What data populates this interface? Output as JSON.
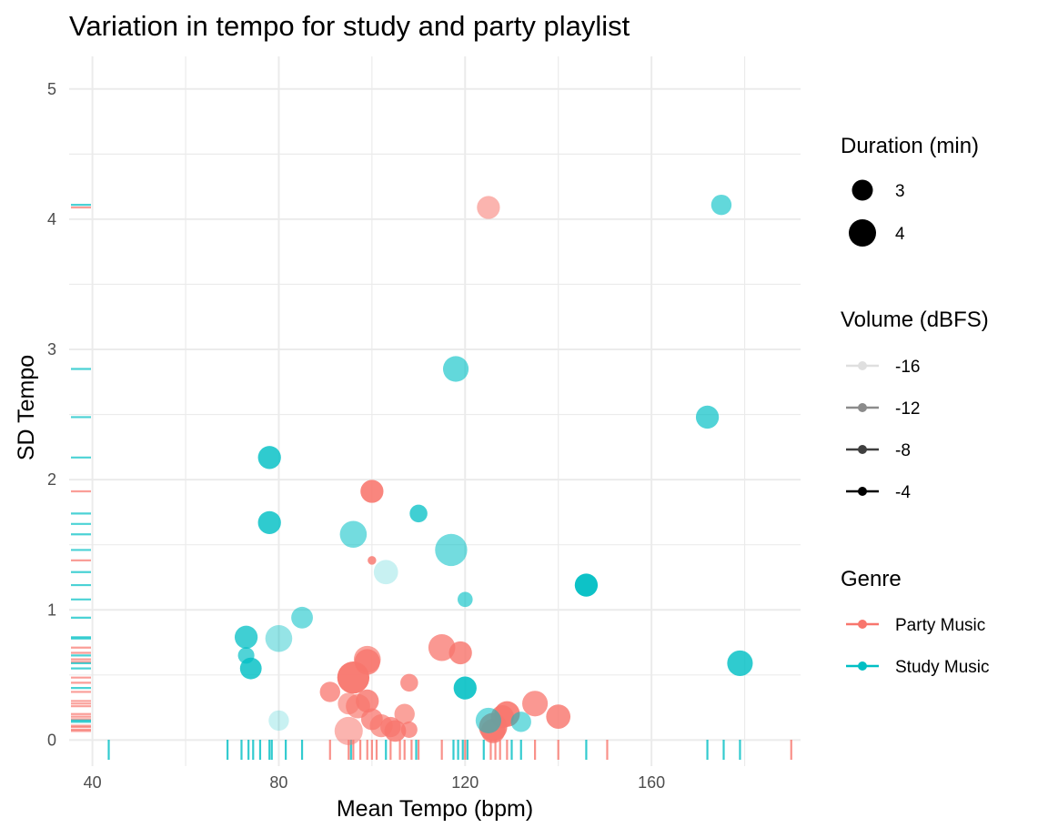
{
  "chart_data": {
    "type": "scatter",
    "title": "Variation in tempo for study and party playlist",
    "xlabel": "Mean Tempo (bpm)",
    "ylabel": "SD Tempo",
    "xlim": [
      35,
      192
    ],
    "ylim": [
      -0.2,
      5.25
    ],
    "xticks": [
      40,
      80,
      120,
      160
    ],
    "yticks": [
      0,
      1,
      2,
      3,
      4,
      5
    ],
    "grid": true,
    "legend_placement": "right",
    "legends": {
      "size": {
        "title": "Duration (min)",
        "items": [
          {
            "label": "3",
            "value": 3
          },
          {
            "label": "4",
            "value": 4
          }
        ]
      },
      "alpha": {
        "title": "Volume (dBFS)",
        "items": [
          {
            "label": "-16",
            "value": -16
          },
          {
            "label": "-12",
            "value": -12
          },
          {
            "label": "-8",
            "value": -8
          },
          {
            "label": "-4",
            "value": -4
          }
        ]
      },
      "color": {
        "title": "Genre",
        "items": [
          {
            "label": "Party Music",
            "color": "#F8766D"
          },
          {
            "label": "Study Music",
            "color": "#00BFC4"
          }
        ]
      }
    },
    "series": [
      {
        "name": "Party Music",
        "color": "#F8766D",
        "points": [
          {
            "x": 125,
            "y": 4.09,
            "duration": 3.4,
            "volume": -10
          },
          {
            "x": 100,
            "y": 1.91,
            "duration": 3.4,
            "volume": -5
          },
          {
            "x": 100,
            "y": 1.38,
            "duration": 2.3,
            "volume": -6
          },
          {
            "x": 115,
            "y": 0.71,
            "duration": 3.7,
            "volume": -7
          },
          {
            "x": 119,
            "y": 0.67,
            "duration": 3.4,
            "volume": -6
          },
          {
            "x": 99,
            "y": 0.62,
            "duration": 3.7,
            "volume": -8
          },
          {
            "x": 99,
            "y": 0.6,
            "duration": 3.6,
            "volume": -6
          },
          {
            "x": 96,
            "y": 0.48,
            "duration": 4.1,
            "volume": -4
          },
          {
            "x": 108,
            "y": 0.44,
            "duration": 3.0,
            "volume": -7
          },
          {
            "x": 91,
            "y": 0.37,
            "duration": 3.2,
            "volume": -7
          },
          {
            "x": 99,
            "y": 0.3,
            "duration": 3.4,
            "volume": -6
          },
          {
            "x": 95,
            "y": 0.28,
            "duration": 3.3,
            "volume": -9
          },
          {
            "x": 97,
            "y": 0.26,
            "duration": 3.5,
            "volume": -8
          },
          {
            "x": 135,
            "y": 0.28,
            "duration": 3.6,
            "volume": -7
          },
          {
            "x": 129,
            "y": 0.2,
            "duration": 3.6,
            "volume": -5
          },
          {
            "x": 128,
            "y": 0.18,
            "duration": 3.4,
            "volume": -6
          },
          {
            "x": 107,
            "y": 0.2,
            "duration": 3.2,
            "volume": -8
          },
          {
            "x": 140,
            "y": 0.18,
            "duration": 3.5,
            "volume": -6
          },
          {
            "x": 100,
            "y": 0.16,
            "duration": 3.3,
            "volume": -7
          },
          {
            "x": 102,
            "y": 0.11,
            "duration": 3.4,
            "volume": -8
          },
          {
            "x": 104,
            "y": 0.1,
            "duration": 3.2,
            "volume": -7
          },
          {
            "x": 105,
            "y": 0.07,
            "duration": 3.3,
            "volume": -6
          },
          {
            "x": 108,
            "y": 0.08,
            "duration": 2.9,
            "volume": -7
          },
          {
            "x": 95,
            "y": 0.07,
            "duration": 3.8,
            "volume": -10
          },
          {
            "x": 126,
            "y": 0.1,
            "duration": 3.8,
            "volume": -5
          },
          {
            "x": 126,
            "y": 0.07,
            "duration": 3.5,
            "volume": -6
          }
        ]
      },
      {
        "name": "Study Music",
        "color": "#00BFC4",
        "points": [
          {
            "x": 175,
            "y": 4.11,
            "duration": 3.2,
            "volume": -9
          },
          {
            "x": 118,
            "y": 2.85,
            "duration": 3.6,
            "volume": -9
          },
          {
            "x": 172,
            "y": 2.48,
            "duration": 3.4,
            "volume": -8
          },
          {
            "x": 78,
            "y": 2.17,
            "duration": 3.4,
            "volume": -6
          },
          {
            "x": 110,
            "y": 1.74,
            "duration": 3.0,
            "volume": -7
          },
          {
            "x": 78,
            "y": 1.67,
            "duration": 3.4,
            "volume": -6
          },
          {
            "x": 96,
            "y": 1.58,
            "duration": 3.7,
            "volume": -10
          },
          {
            "x": 117,
            "y": 1.46,
            "duration": 4.1,
            "volume": -10
          },
          {
            "x": 103,
            "y": 1.29,
            "duration": 3.5,
            "volume": -15
          },
          {
            "x": 146,
            "y": 1.19,
            "duration": 3.4,
            "volume": -4
          },
          {
            "x": 120,
            "y": 1.08,
            "duration": 2.8,
            "volume": -9
          },
          {
            "x": 85,
            "y": 0.94,
            "duration": 3.3,
            "volume": -10
          },
          {
            "x": 73,
            "y": 0.79,
            "duration": 3.4,
            "volume": -7
          },
          {
            "x": 80,
            "y": 0.78,
            "duration": 3.7,
            "volume": -12
          },
          {
            "x": 73,
            "y": 0.65,
            "duration": 2.9,
            "volume": -8
          },
          {
            "x": 74,
            "y": 0.55,
            "duration": 3.3,
            "volume": -6
          },
          {
            "x": 179,
            "y": 0.59,
            "duration": 3.6,
            "volume": -6
          },
          {
            "x": 120,
            "y": 0.4,
            "duration": 3.4,
            "volume": -5
          },
          {
            "x": 80,
            "y": 0.15,
            "duration": 3.2,
            "volume": -15
          },
          {
            "x": 125,
            "y": 0.15,
            "duration": 3.6,
            "volume": -10
          },
          {
            "x": 132,
            "y": 0.14,
            "duration": 3.2,
            "volume": -10
          }
        ]
      }
    ],
    "rug_x": [
      {
        "x": 43.5,
        "c": 1
      },
      {
        "x": 69,
        "c": 1
      },
      {
        "x": 72,
        "c": 1
      },
      {
        "x": 73.5,
        "c": 1
      },
      {
        "x": 74.5,
        "c": 1
      },
      {
        "x": 76,
        "c": 1
      },
      {
        "x": 78,
        "c": 1
      },
      {
        "x": 78.5,
        "c": 1
      },
      {
        "x": 81.5,
        "c": 1
      },
      {
        "x": 85,
        "c": 1
      },
      {
        "x": 91,
        "c": 0
      },
      {
        "x": 95,
        "c": 0
      },
      {
        "x": 95.5,
        "c": 1
      },
      {
        "x": 96,
        "c": 0
      },
      {
        "x": 97.5,
        "c": 0
      },
      {
        "x": 99,
        "c": 0
      },
      {
        "x": 100,
        "c": 0
      },
      {
        "x": 101,
        "c": 0
      },
      {
        "x": 103,
        "c": 1
      },
      {
        "x": 104,
        "c": 0
      },
      {
        "x": 106,
        "c": 0
      },
      {
        "x": 107,
        "c": 0
      },
      {
        "x": 108.5,
        "c": 0
      },
      {
        "x": 109.5,
        "c": 1
      },
      {
        "x": 110,
        "c": 0
      },
      {
        "x": 115,
        "c": 0
      },
      {
        "x": 117.5,
        "c": 1
      },
      {
        "x": 118.5,
        "c": 1
      },
      {
        "x": 119.5,
        "c": 1
      },
      {
        "x": 120,
        "c": 0
      },
      {
        "x": 120.5,
        "c": 1
      },
      {
        "x": 124,
        "c": 1
      },
      {
        "x": 125.5,
        "c": 0
      },
      {
        "x": 126.5,
        "c": 0
      },
      {
        "x": 127.5,
        "c": 0
      },
      {
        "x": 129,
        "c": 0
      },
      {
        "x": 130,
        "c": 1
      },
      {
        "x": 132,
        "c": 1
      },
      {
        "x": 135,
        "c": 0
      },
      {
        "x": 140,
        "c": 0
      },
      {
        "x": 146,
        "c": 1
      },
      {
        "x": 150.5,
        "c": 0
      },
      {
        "x": 172,
        "c": 1
      },
      {
        "x": 175.5,
        "c": 1
      },
      {
        "x": 179,
        "c": 1
      },
      {
        "x": 190,
        "c": 0
      }
    ],
    "rug_y": [
      {
        "y": 4.11,
        "c": 1
      },
      {
        "y": 4.09,
        "c": 0
      },
      {
        "y": 2.85,
        "c": 1
      },
      {
        "y": 2.48,
        "c": 1
      },
      {
        "y": 2.17,
        "c": 1
      },
      {
        "y": 1.91,
        "c": 0
      },
      {
        "y": 1.74,
        "c": 1
      },
      {
        "y": 1.66,
        "c": 1
      },
      {
        "y": 1.58,
        "c": 1
      },
      {
        "y": 1.46,
        "c": 1
      },
      {
        "y": 1.38,
        "c": 0
      },
      {
        "y": 1.29,
        "c": 1
      },
      {
        "y": 1.19,
        "c": 1
      },
      {
        "y": 1.08,
        "c": 1
      },
      {
        "y": 0.94,
        "c": 1
      },
      {
        "y": 0.79,
        "c": 1
      },
      {
        "y": 0.78,
        "c": 1
      },
      {
        "y": 0.71,
        "c": 0
      },
      {
        "y": 0.67,
        "c": 0
      },
      {
        "y": 0.65,
        "c": 1
      },
      {
        "y": 0.62,
        "c": 0
      },
      {
        "y": 0.6,
        "c": 0
      },
      {
        "y": 0.59,
        "c": 1
      },
      {
        "y": 0.55,
        "c": 1
      },
      {
        "y": 0.48,
        "c": 0
      },
      {
        "y": 0.44,
        "c": 0
      },
      {
        "y": 0.4,
        "c": 1
      },
      {
        "y": 0.37,
        "c": 0
      },
      {
        "y": 0.3,
        "c": 0
      },
      {
        "y": 0.28,
        "c": 0
      },
      {
        "y": 0.26,
        "c": 0
      },
      {
        "y": 0.2,
        "c": 0
      },
      {
        "y": 0.18,
        "c": 0
      },
      {
        "y": 0.16,
        "c": 0
      },
      {
        "y": 0.15,
        "c": 1
      },
      {
        "y": 0.14,
        "c": 1
      },
      {
        "y": 0.11,
        "c": 0
      },
      {
        "y": 0.1,
        "c": 0
      },
      {
        "y": 0.08,
        "c": 0
      },
      {
        "y": 0.07,
        "c": 0
      }
    ]
  }
}
